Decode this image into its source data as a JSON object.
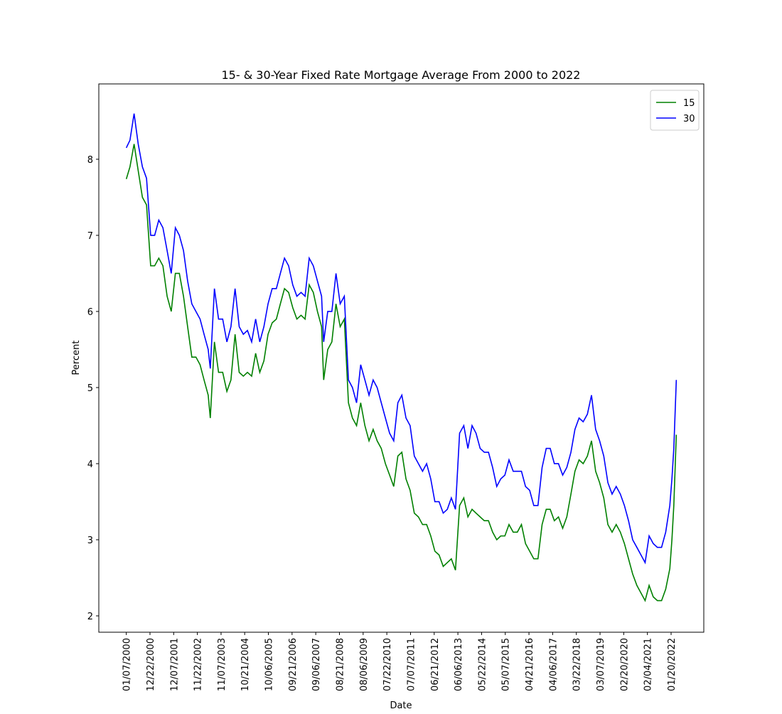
{
  "chart_data": {
    "type": "line",
    "title": "15- & 30-Year Fixed Rate Mortgage Average From 2000 to 2022",
    "x_label": "Date",
    "y_label": "Percent",
    "x": [
      "01/07/2000",
      "03/01/2000",
      "05/01/2000",
      "07/01/2000",
      "09/01/2000",
      "11/01/2000",
      "01/01/2001",
      "03/01/2001",
      "05/01/2001",
      "07/01/2001",
      "09/01/2001",
      "11/01/2001",
      "01/01/2002",
      "03/01/2002",
      "05/01/2002",
      "07/01/2002",
      "09/01/2002",
      "11/01/2002",
      "01/01/2003",
      "03/01/2003",
      "05/01/2003",
      "06/01/2003",
      "08/01/2003",
      "10/01/2003",
      "12/01/2003",
      "02/01/2004",
      "04/01/2004",
      "06/01/2004",
      "08/01/2004",
      "10/01/2004",
      "12/01/2004",
      "02/01/2005",
      "04/01/2005",
      "06/01/2005",
      "08/01/2005",
      "10/01/2005",
      "12/01/2005",
      "02/01/2006",
      "04/01/2006",
      "06/01/2006",
      "08/01/2006",
      "10/01/2006",
      "12/01/2006",
      "02/01/2007",
      "04/01/2007",
      "06/01/2007",
      "08/01/2007",
      "10/01/2007",
      "12/01/2007",
      "01/01/2008",
      "03/01/2008",
      "05/01/2008",
      "07/01/2008",
      "09/01/2008",
      "11/01/2008",
      "01/01/2009",
      "03/01/2009",
      "05/01/2009",
      "07/01/2009",
      "09/01/2009",
      "11/01/2009",
      "01/01/2010",
      "03/01/2010",
      "05/01/2010",
      "07/01/2010",
      "09/01/2010",
      "11/01/2010",
      "01/01/2011",
      "03/01/2011",
      "05/01/2011",
      "07/01/2011",
      "09/01/2011",
      "11/01/2011",
      "01/01/2012",
      "03/01/2012",
      "05/01/2012",
      "07/01/2012",
      "09/01/2012",
      "11/01/2012",
      "01/01/2013",
      "03/01/2013",
      "05/01/2013",
      "07/01/2013",
      "09/01/2013",
      "11/01/2013",
      "01/01/2014",
      "03/01/2014",
      "05/01/2014",
      "07/01/2014",
      "09/01/2014",
      "11/01/2014",
      "01/01/2015",
      "03/01/2015",
      "05/01/2015",
      "07/01/2015",
      "09/01/2015",
      "11/01/2015",
      "01/01/2016",
      "03/01/2016",
      "05/01/2016",
      "07/01/2016",
      "09/01/2016",
      "11/01/2016",
      "01/01/2017",
      "03/01/2017",
      "05/01/2017",
      "07/01/2017",
      "09/01/2017",
      "11/01/2017",
      "01/01/2018",
      "03/01/2018",
      "05/01/2018",
      "07/01/2018",
      "09/01/2018",
      "11/01/2018",
      "01/01/2019",
      "03/01/2019",
      "05/01/2019",
      "07/01/2019",
      "09/01/2019",
      "11/01/2019",
      "01/01/2020",
      "03/01/2020",
      "05/01/2020",
      "07/01/2020",
      "09/01/2020",
      "11/01/2020",
      "01/01/2021",
      "03/01/2021",
      "05/01/2021",
      "07/01/2021",
      "09/01/2021",
      "11/01/2021",
      "01/01/2022",
      "02/01/2022",
      "03/01/2022",
      "04/07/2022"
    ],
    "series": [
      {
        "name": "15",
        "color": "#008000",
        "values": [
          7.74,
          7.9,
          8.2,
          7.85,
          7.5,
          7.4,
          6.6,
          6.6,
          6.7,
          6.6,
          6.2,
          6.0,
          6.5,
          6.5,
          6.2,
          5.8,
          5.4,
          5.4,
          5.3,
          5.1,
          4.9,
          4.6,
          5.6,
          5.2,
          5.2,
          4.95,
          5.1,
          5.7,
          5.2,
          5.15,
          5.2,
          5.15,
          5.45,
          5.2,
          5.35,
          5.7,
          5.85,
          5.9,
          6.1,
          6.3,
          6.25,
          6.05,
          5.9,
          5.95,
          5.9,
          6.35,
          6.25,
          6.0,
          5.8,
          5.1,
          5.5,
          5.6,
          6.1,
          5.8,
          5.9,
          4.8,
          4.6,
          4.5,
          4.8,
          4.5,
          4.3,
          4.45,
          4.3,
          4.2,
          4.0,
          3.85,
          3.7,
          4.1,
          4.15,
          3.8,
          3.65,
          3.35,
          3.3,
          3.2,
          3.2,
          3.05,
          2.85,
          2.8,
          2.65,
          2.7,
          2.75,
          2.6,
          3.45,
          3.55,
          3.3,
          3.4,
          3.35,
          3.3,
          3.25,
          3.25,
          3.1,
          3.0,
          3.05,
          3.05,
          3.2,
          3.1,
          3.1,
          3.2,
          2.95,
          2.85,
          2.75,
          2.75,
          3.2,
          3.4,
          3.4,
          3.25,
          3.3,
          3.15,
          3.3,
          3.6,
          3.9,
          4.05,
          4.0,
          4.1,
          4.3,
          3.9,
          3.75,
          3.55,
          3.2,
          3.1,
          3.2,
          3.1,
          2.95,
          2.75,
          2.55,
          2.4,
          2.3,
          2.2,
          2.4,
          2.25,
          2.2,
          2.2,
          2.35,
          2.62,
          3.0,
          3.45,
          4.38
        ]
      },
      {
        "name": "30",
        "color": "#0000ff",
        "values": [
          8.15,
          8.25,
          8.6,
          8.2,
          7.9,
          7.75,
          7.0,
          7.0,
          7.2,
          7.1,
          6.8,
          6.5,
          7.1,
          7.0,
          6.8,
          6.4,
          6.1,
          6.0,
          5.9,
          5.7,
          5.5,
          5.25,
          6.3,
          5.9,
          5.9,
          5.6,
          5.8,
          6.3,
          5.8,
          5.7,
          5.75,
          5.6,
          5.9,
          5.6,
          5.8,
          6.1,
          6.3,
          6.3,
          6.5,
          6.7,
          6.6,
          6.35,
          6.2,
          6.25,
          6.2,
          6.7,
          6.6,
          6.4,
          6.2,
          5.6,
          6.0,
          6.0,
          6.5,
          6.1,
          6.2,
          5.1,
          5.0,
          4.8,
          5.3,
          5.1,
          4.9,
          5.1,
          5.0,
          4.8,
          4.6,
          4.4,
          4.3,
          4.8,
          4.9,
          4.6,
          4.5,
          4.1,
          4.0,
          3.9,
          4.0,
          3.8,
          3.5,
          3.5,
          3.35,
          3.4,
          3.55,
          3.4,
          4.4,
          4.5,
          4.2,
          4.5,
          4.4,
          4.2,
          4.15,
          4.15,
          3.95,
          3.7,
          3.8,
          3.85,
          4.05,
          3.9,
          3.9,
          3.9,
          3.7,
          3.65,
          3.45,
          3.45,
          3.95,
          4.2,
          4.2,
          4.0,
          4.0,
          3.85,
          3.95,
          4.15,
          4.45,
          4.6,
          4.55,
          4.65,
          4.9,
          4.45,
          4.3,
          4.1,
          3.75,
          3.6,
          3.7,
          3.6,
          3.45,
          3.25,
          3.0,
          2.9,
          2.8,
          2.7,
          3.05,
          2.95,
          2.9,
          2.9,
          3.1,
          3.45,
          3.8,
          4.2,
          5.1
        ]
      }
    ],
    "xlim": [
      "11/27/1998",
      "05/18/2023"
    ],
    "xticks": [
      "01/07/2000",
      "12/22/2000",
      "12/07/2001",
      "11/22/2002",
      "11/07/2003",
      "10/21/2004",
      "10/06/2005",
      "09/21/2006",
      "09/06/2007",
      "08/21/2008",
      "08/06/2009",
      "07/22/2010",
      "07/07/2011",
      "06/21/2012",
      "06/06/2013",
      "05/22/2014",
      "05/07/2015",
      "04/21/2016",
      "04/06/2017",
      "03/22/2018",
      "03/07/2019",
      "02/20/2020",
      "02/04/2021",
      "01/20/2022"
    ],
    "ylim": [
      1.785,
      8.99
    ],
    "yticks": [
      2,
      3,
      4,
      5,
      6,
      7,
      8
    ],
    "grid": false,
    "legend": "upper right"
  }
}
